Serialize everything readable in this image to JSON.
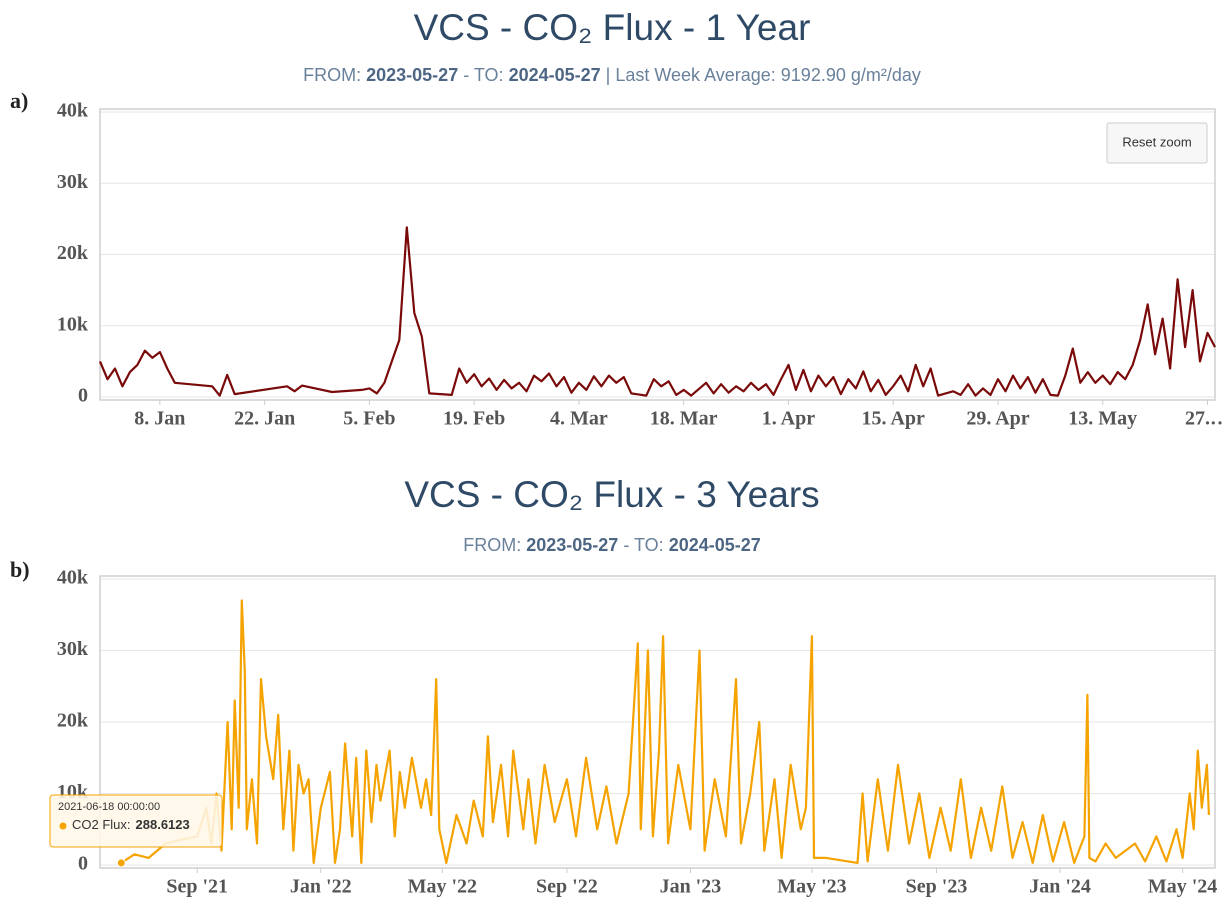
{
  "chart_data": [
    {
      "type": "line",
      "panel": "a)",
      "title": "VCS - CO₂ Flux - 1 Year",
      "subtitle": [
        "FROM:",
        "2023-05-27",
        "- TO:",
        "2024-05-27",
        "| Last Week Average: 9192.90 g/m²/day"
      ],
      "button": "Reset zoom",
      "color": "#7a0a0a",
      "xlim": [
        "2023-12-31",
        "2024-05-28"
      ],
      "xticks": [
        {
          "value": "2024-01-08",
          "label": "8. Jan"
        },
        {
          "value": "2024-01-22",
          "label": "22. Jan"
        },
        {
          "value": "2024-02-05",
          "label": "5. Feb"
        },
        {
          "value": "2024-02-19",
          "label": "19. Feb"
        },
        {
          "value": "2024-03-04",
          "label": "4. Mar"
        },
        {
          "value": "2024-03-18",
          "label": "18. Mar"
        },
        {
          "value": "2024-04-01",
          "label": "1. Apr"
        },
        {
          "value": "2024-04-15",
          "label": "15. Apr"
        },
        {
          "value": "2024-04-29",
          "label": "29. Apr"
        },
        {
          "value": "2024-05-13",
          "label": "13. May"
        },
        {
          "value": "2024-05-27",
          "label": "27.…"
        }
      ],
      "ylim": [
        0,
        40000
      ],
      "yticks": [
        0,
        {
          "value": 10000,
          "label": "10k"
        },
        {
          "value": 20000,
          "label": "20k"
        },
        {
          "value": 30000,
          "label": "30k"
        },
        {
          "value": 40000,
          "label": "40k"
        }
      ],
      "grid": true,
      "x": [
        "2023-12-31",
        "2024-01-01",
        "2024-01-02",
        "2024-01-03",
        "2024-01-04",
        "2024-01-05",
        "2024-01-06",
        "2024-01-07",
        "2024-01-08",
        "2024-01-09",
        "2024-01-10",
        "2024-01-15",
        "2024-01-16",
        "2024-01-17",
        "2024-01-18",
        "2024-01-25",
        "2024-01-26",
        "2024-01-27",
        "2024-01-31",
        "2024-02-04",
        "2024-02-05",
        "2024-02-06",
        "2024-02-07",
        "2024-02-08",
        "2024-02-09",
        "2024-02-10",
        "2024-02-11",
        "2024-02-12",
        "2024-02-13",
        "2024-02-16",
        "2024-02-17",
        "2024-02-18",
        "2024-02-19",
        "2024-02-20",
        "2024-02-21",
        "2024-02-22",
        "2024-02-23",
        "2024-02-24",
        "2024-02-25",
        "2024-02-26",
        "2024-02-27",
        "2024-02-28",
        "2024-02-29",
        "2024-03-01",
        "2024-03-02",
        "2024-03-03",
        "2024-03-04",
        "2024-03-05",
        "2024-03-06",
        "2024-03-07",
        "2024-03-08",
        "2024-03-09",
        "2024-03-10",
        "2024-03-11",
        "2024-03-13",
        "2024-03-14",
        "2024-03-15",
        "2024-03-16",
        "2024-03-17",
        "2024-03-18",
        "2024-03-19",
        "2024-03-21",
        "2024-03-22",
        "2024-03-23",
        "2024-03-24",
        "2024-03-25",
        "2024-03-26",
        "2024-03-27",
        "2024-03-28",
        "2024-03-29",
        "2024-03-30",
        "2024-03-31",
        "2024-04-01",
        "2024-04-02",
        "2024-04-03",
        "2024-04-04",
        "2024-04-05",
        "2024-04-06",
        "2024-04-07",
        "2024-04-08",
        "2024-04-09",
        "2024-04-10",
        "2024-04-11",
        "2024-04-12",
        "2024-04-13",
        "2024-04-14",
        "2024-04-15",
        "2024-04-16",
        "2024-04-17",
        "2024-04-18",
        "2024-04-19",
        "2024-04-20",
        "2024-04-21",
        "2024-04-23",
        "2024-04-24",
        "2024-04-25",
        "2024-04-26",
        "2024-04-27",
        "2024-04-28",
        "2024-04-29",
        "2024-04-30",
        "2024-05-01",
        "2024-05-02",
        "2024-05-03",
        "2024-05-04",
        "2024-05-05",
        "2024-05-06",
        "2024-05-07",
        "2024-05-08",
        "2024-05-09",
        "2024-05-10",
        "2024-05-11",
        "2024-05-12",
        "2024-05-13",
        "2024-05-14",
        "2024-05-15",
        "2024-05-16",
        "2024-05-17",
        "2024-05-18",
        "2024-05-19",
        "2024-05-20",
        "2024-05-21",
        "2024-05-22",
        "2024-05-23",
        "2024-05-24",
        "2024-05-25",
        "2024-05-26",
        "2024-05-27",
        "2024-05-28"
      ],
      "values": [
        5000,
        2500,
        4000,
        1500,
        3500,
        4500,
        6500,
        5500,
        6300,
        4000,
        2000,
        1500,
        200,
        3100,
        400,
        1500,
        800,
        1600,
        700,
        1000,
        1200,
        500,
        2000,
        5000,
        8000,
        23800,
        11800,
        8500,
        500,
        300,
        4000,
        2000,
        3200,
        1500,
        2600,
        1000,
        2400,
        1200,
        2000,
        800,
        3000,
        2200,
        3300,
        1500,
        2800,
        600,
        2000,
        1000,
        2900,
        1500,
        3000,
        2000,
        2800,
        500,
        200,
        2500,
        1500,
        2200,
        300,
        1000,
        200,
        2000,
        500,
        1800,
        600,
        1500,
        800,
        2000,
        1000,
        1800,
        300,
        2500,
        4500,
        1000,
        3800,
        800,
        3000,
        1500,
        2800,
        400,
        2500,
        1200,
        3600,
        800,
        2400,
        300,
        1500,
        3000,
        800,
        4500,
        1500,
        4000,
        200,
        800,
        300,
        1800,
        200,
        1200,
        300,
        2500,
        800,
        3000,
        1200,
        2800,
        600,
        2500,
        300,
        200,
        3000,
        6800,
        2000,
        3500,
        2000,
        3000,
        1800,
        3500,
        2500,
        4500,
        8000,
        13000,
        6000,
        11000,
        4000,
        16500,
        7000,
        15000,
        5000,
        9000,
        7000
      ]
    },
    {
      "type": "line",
      "panel": "b)",
      "title": "VCS - CO₂ Flux - 3 Years",
      "subtitle": [
        "FROM:",
        "2023-05-27",
        "- TO:",
        "2024-05-27"
      ],
      "color": "#f5a300",
      "tooltip": {
        "date": "2021-06-18 00:00:00",
        "label": "CO2 Flux:",
        "value": 288.6123
      },
      "xlim": [
        "2021-05-28",
        "2024-06-02"
      ],
      "xticks": [
        {
          "value": "2021-09-01",
          "label": "Sep '21"
        },
        {
          "value": "2022-01-01",
          "label": "Jan '22"
        },
        {
          "value": "2022-05-01",
          "label": "May '22"
        },
        {
          "value": "2022-09-01",
          "label": "Sep '22"
        },
        {
          "value": "2023-01-01",
          "label": "Jan '23"
        },
        {
          "value": "2023-05-01",
          "label": "May '23"
        },
        {
          "value": "2023-09-01",
          "label": "Sep '23"
        },
        {
          "value": "2024-01-01",
          "label": "Jan '24"
        },
        {
          "value": "2024-05-01",
          "label": "May '24"
        }
      ],
      "ylim": [
        0,
        40000
      ],
      "yticks": [
        0,
        {
          "value": 10000,
          "label": "10k"
        },
        {
          "value": 20000,
          "label": "20k"
        },
        {
          "value": 30000,
          "label": "30k"
        },
        {
          "value": 40000,
          "label": "40k"
        }
      ],
      "grid": true,
      "x": [
        "2021-06-18",
        "2021-07-01",
        "2021-07-15",
        "2021-08-01",
        "2021-08-15",
        "2021-09-01",
        "2021-09-10",
        "2021-09-15",
        "2021-09-20",
        "2021-09-25",
        "2021-10-01",
        "2021-10-05",
        "2021-10-08",
        "2021-10-12",
        "2021-10-15",
        "2021-10-18",
        "2021-10-20",
        "2021-10-25",
        "2021-10-30",
        "2021-11-03",
        "2021-11-08",
        "2021-11-15",
        "2021-11-20",
        "2021-11-25",
        "2021-12-01",
        "2021-12-05",
        "2021-12-10",
        "2021-12-15",
        "2021-12-20",
        "2021-12-25",
        "2022-01-01",
        "2022-01-10",
        "2022-01-15",
        "2022-01-20",
        "2022-01-25",
        "2022-02-01",
        "2022-02-05",
        "2022-02-10",
        "2022-02-15",
        "2022-02-20",
        "2022-02-25",
        "2022-03-01",
        "2022-03-10",
        "2022-03-15",
        "2022-03-20",
        "2022-03-25",
        "2022-04-01",
        "2022-04-10",
        "2022-04-15",
        "2022-04-20",
        "2022-04-25",
        "2022-04-28",
        "2022-05-05",
        "2022-05-15",
        "2022-05-25",
        "2022-06-01",
        "2022-06-10",
        "2022-06-15",
        "2022-06-20",
        "2022-06-28",
        "2022-07-05",
        "2022-07-10",
        "2022-07-20",
        "2022-07-25",
        "2022-08-01",
        "2022-08-10",
        "2022-08-20",
        "2022-09-01",
        "2022-09-10",
        "2022-09-20",
        "2022-10-01",
        "2022-10-10",
        "2022-10-20",
        "2022-11-01",
        "2022-11-10",
        "2022-11-13",
        "2022-11-20",
        "2022-11-25",
        "2022-12-01",
        "2022-12-05",
        "2022-12-10",
        "2022-12-20",
        "2023-01-01",
        "2023-01-10",
        "2023-01-15",
        "2023-01-25",
        "2023-02-05",
        "2023-02-15",
        "2023-02-20",
        "2023-03-01",
        "2023-03-10",
        "2023-03-15",
        "2023-03-25",
        "2023-04-01",
        "2023-04-10",
        "2023-04-20",
        "2023-04-25",
        "2023-05-01",
        "2023-05-03",
        "2023-05-15",
        "2023-06-15",
        "2023-06-20",
        "2023-06-25",
        "2023-07-05",
        "2023-07-15",
        "2023-07-25",
        "2023-08-05",
        "2023-08-15",
        "2023-08-25",
        "2023-09-05",
        "2023-09-15",
        "2023-09-25",
        "2023-10-05",
        "2023-10-15",
        "2023-10-25",
        "2023-11-05",
        "2023-11-15",
        "2023-11-25",
        "2023-12-05",
        "2023-12-15",
        "2023-12-25",
        "2024-01-05",
        "2024-01-15",
        "2024-01-25",
        "2024-01-28",
        "2024-01-30",
        "2024-02-05",
        "2024-02-15",
        "2024-02-25",
        "2024-03-15",
        "2024-03-25",
        "2024-04-05",
        "2024-04-15",
        "2024-04-25",
        "2024-05-01",
        "2024-05-08",
        "2024-05-12",
        "2024-05-16",
        "2024-05-20",
        "2024-05-25",
        "2024-05-27"
      ],
      "values": [
        288.6123,
        1500,
        1000,
        3000,
        3500,
        4000,
        8000,
        3000,
        10000,
        2000,
        20000,
        5000,
        23000,
        8000,
        37000,
        27000,
        5000,
        12000,
        3000,
        26000,
        18000,
        12000,
        21000,
        5000,
        16000,
        2000,
        14000,
        10000,
        12000,
        300,
        8000,
        13000,
        300,
        5000,
        17000,
        4000,
        15000,
        300,
        16000,
        6000,
        14000,
        9000,
        16000,
        4000,
        13000,
        8000,
        15000,
        8000,
        12000,
        7000,
        26000,
        5000,
        300,
        7000,
        3000,
        9000,
        4000,
        18000,
        6000,
        14000,
        4000,
        16000,
        5000,
        12000,
        3000,
        14000,
        6000,
        12000,
        4000,
        15000,
        5000,
        11000,
        3000,
        10000,
        31000,
        5000,
        30000,
        4000,
        16000,
        32000,
        3000,
        14000,
        5000,
        30000,
        2000,
        12000,
        4000,
        26000,
        3000,
        10000,
        20000,
        2000,
        12000,
        1000,
        14000,
        5000,
        8000,
        32000,
        1000,
        1000,
        300,
        10000,
        500,
        12000,
        2000,
        14000,
        3000,
        10000,
        1000,
        8000,
        2000,
        12000,
        1000,
        8000,
        2000,
        11000,
        1000,
        6000,
        300,
        7000,
        500,
        6000,
        300,
        4000,
        23800,
        1000,
        500,
        3000,
        1000,
        3000,
        500,
        4000,
        500,
        5000,
        1000,
        10000,
        5000,
        16000,
        8000,
        14000,
        7000
      ]
    }
  ]
}
